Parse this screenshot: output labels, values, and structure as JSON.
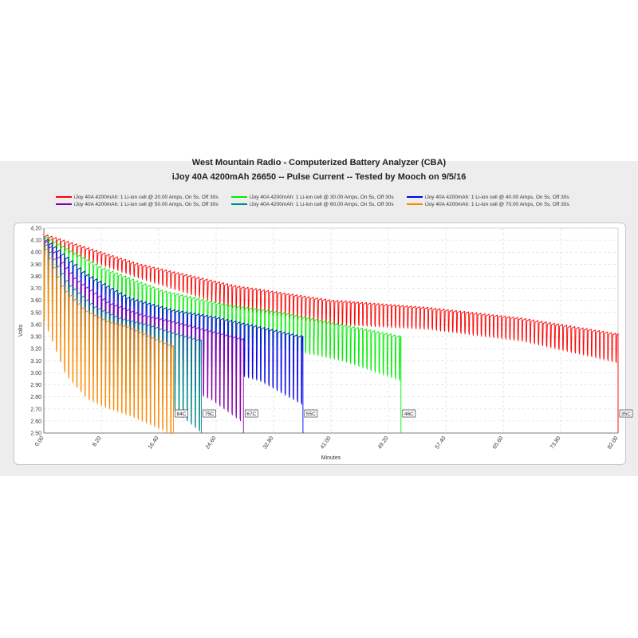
{
  "chart_data": {
    "type": "line",
    "title": "West Mountain Radio - Computerized Battery Analyzer (CBA)",
    "subtitle": "iJoy 40A 4200mAh 26650 -- Pulse Current -- Tested by Mooch on 9/5/16",
    "xlabel": "Minutes",
    "ylabel": "Volts",
    "xlim": [
      0,
      82
    ],
    "ylim": [
      2.5,
      4.2
    ],
    "x_ticks": [
      "0.00",
      "8.20",
      "16.40",
      "24.60",
      "32.80",
      "41.00",
      "49.20",
      "57.40",
      "65.60",
      "73.80",
      "82.00"
    ],
    "y_ticks": [
      "2.50",
      "2.60",
      "2.70",
      "2.80",
      "2.90",
      "3.00",
      "3.10",
      "3.20",
      "3.30",
      "3.40",
      "3.50",
      "3.60",
      "3.70",
      "3.80",
      "3.90",
      "4.00",
      "4.10",
      "4.20"
    ],
    "grid": true,
    "legend_placement": "top",
    "series": [
      {
        "name": "iJoy 40A 4200mAh: 1 Li-ion cell @ 20.00 Amps, On 5s, Off 30s",
        "color": "#ff0000",
        "end_minutes": 82.0,
        "rest_v": [
          4.15,
          3.9,
          3.72,
          3.6,
          3.54,
          3.45,
          3.32
        ],
        "load_v": [
          4.08,
          3.8,
          3.55,
          3.42,
          3.38,
          3.28,
          3.1
        ],
        "end_label": "35C"
      },
      {
        "name": "iJoy 40A 4200mAh: 1 Li-ion cell @ 30.00 Amps, On 5s, Off 30s",
        "color": "#00ee00",
        "end_minutes": 51.0,
        "rest_v": [
          4.14,
          3.87,
          3.68,
          3.57,
          3.5,
          3.4,
          3.3
        ],
        "load_v": [
          4.0,
          3.68,
          3.45,
          3.3,
          3.22,
          3.12,
          2.95
        ],
        "end_label": "46C"
      },
      {
        "name": "iJoy 40A 4200mAh: 1 Li-ion cell @ 40.00 Amps, On 5s, Off 30s",
        "color": "#0000ee",
        "end_minutes": 37.0,
        "rest_v": [
          4.13,
          3.82,
          3.62,
          3.52,
          3.46,
          3.38,
          3.3
        ],
        "load_v": [
          3.9,
          3.5,
          3.25,
          3.12,
          3.05,
          2.95,
          2.75
        ],
        "end_label": "55C"
      },
      {
        "name": "iJoy 40A 4200mAh: 1 Li-ion cell @ 50.00 Amps, On 5s, Off 30s",
        "color": "#8800aa",
        "end_minutes": 28.5,
        "rest_v": [
          4.13,
          3.78,
          3.58,
          3.48,
          3.42,
          3.35,
          3.28
        ],
        "load_v": [
          3.8,
          3.35,
          3.1,
          2.98,
          2.92,
          2.8,
          2.6
        ],
        "end_label": "67C"
      },
      {
        "name": "iJoy 40A 4200mAh: 1 Li-ion cell @ 60.00 Amps, On 5s, Off 30s",
        "color": "#008888",
        "end_minutes": 22.5,
        "rest_v": [
          4.12,
          3.74,
          3.55,
          3.45,
          3.4,
          3.33,
          3.27
        ],
        "load_v": [
          3.65,
          3.2,
          2.95,
          2.85,
          2.8,
          2.7,
          2.52
        ],
        "end_label": "75C"
      },
      {
        "name": "iJoy 40A 4200mAh: 1 Li-ion cell @ 70.00 Amps, On 5s, Off 30s",
        "color": "#ff8800",
        "end_minutes": 18.5,
        "rest_v": [
          4.1,
          3.7,
          3.52,
          3.43,
          3.38,
          3.3,
          3.22
        ],
        "load_v": [
          3.45,
          3.0,
          2.8,
          2.72,
          2.66,
          2.58,
          2.5
        ],
        "end_label": "84C"
      }
    ]
  }
}
